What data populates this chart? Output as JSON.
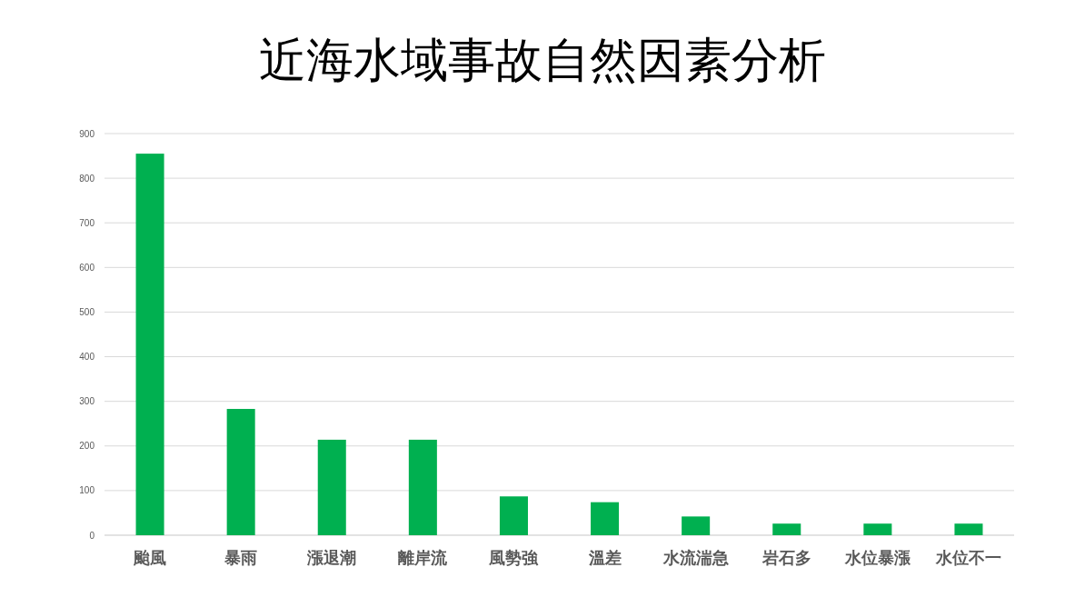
{
  "chart_data": {
    "type": "bar",
    "title": "近海水域事故自然因素分析",
    "categories": [
      "颱風",
      "暴雨",
      "漲退潮",
      "離岸流",
      "風勢強",
      "溫差",
      "水流湍急",
      "岩石多",
      "水位暴漲",
      "水位不一"
    ],
    "values": [
      855,
      283,
      214,
      214,
      87,
      74,
      42,
      26,
      26,
      26
    ],
    "color": "#00b050",
    "ylim": [
      0,
      900
    ],
    "yticks": [
      0,
      100,
      200,
      300,
      400,
      500,
      600,
      700,
      800,
      900
    ],
    "grid": "y"
  }
}
